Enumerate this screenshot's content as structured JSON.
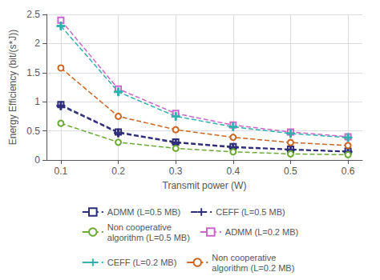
{
  "chart_data": {
    "type": "line",
    "xlabel": "Transmit power (W)",
    "ylabel": "Energy Efficiency (bit/(s*J))",
    "x": [
      0.1,
      0.2,
      0.3,
      0.4,
      0.5,
      0.6
    ],
    "xlim": [
      0.075,
      0.625
    ],
    "ylim": [
      0.0,
      2.5
    ],
    "xticks": [
      0.1,
      0.2,
      0.3,
      0.4,
      0.5,
      0.6
    ],
    "yticks": [
      0,
      0.5,
      1,
      1.5,
      2,
      2.5
    ],
    "grid": true,
    "legend": "bottom",
    "series": [
      {
        "name": "ADMM (L=0.5 MB)",
        "color": "#2d2d7a",
        "marker": "square",
        "line_style": "dashed",
        "values": [
          0.95,
          0.48,
          0.31,
          0.23,
          0.185,
          0.15
        ]
      },
      {
        "name": "CEFF (L=0.5 MB)",
        "color": "#2d2d7a",
        "marker": "plus",
        "line_style": "dashed",
        "values": [
          0.93,
          0.465,
          0.295,
          0.215,
          0.175,
          0.14
        ]
      },
      {
        "name": "Non cooperative\nalgorithm (L=0.5 MB)",
        "color": "#6aaa35",
        "marker": "circle",
        "line_style": "dashed",
        "values": [
          0.63,
          0.305,
          0.2,
          0.14,
          0.105,
          0.09
        ]
      },
      {
        "name": "ADMM (L=0.2 MB)",
        "color": "#cc66cc",
        "marker": "square",
        "line_style": "dashed",
        "values": [
          2.4,
          1.22,
          0.8,
          0.6,
          0.48,
          0.4
        ]
      },
      {
        "name": "CEFF (L=0.2 MB)",
        "color": "#30b0b0",
        "marker": "plus",
        "line_style": "dashed",
        "values": [
          2.3,
          1.17,
          0.75,
          0.57,
          0.455,
          0.385
        ]
      },
      {
        "name": "Non cooperative\nalgorithm (L=0.2 MB)",
        "color": "#cc6622",
        "marker": "circle",
        "line_style": "dashed",
        "values": [
          1.58,
          0.75,
          0.52,
          0.39,
          0.3,
          0.25
        ]
      }
    ]
  }
}
